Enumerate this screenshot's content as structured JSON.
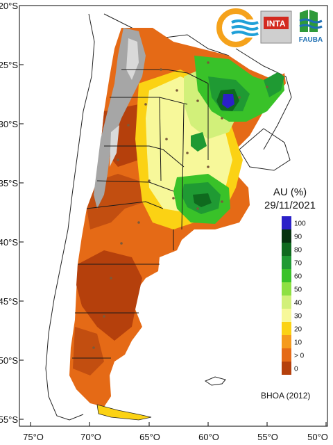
{
  "map": {
    "title": "AU (%)",
    "date": "29/11/2021",
    "source": "BHOA (2012)",
    "lat_labels": [
      "20°S",
      "25°S",
      "30°S",
      "35°S",
      "40°S",
      "45°S",
      "50°S",
      "55°S"
    ],
    "lon_labels": [
      "75°O",
      "70°O",
      "65°O",
      "60°O",
      "55°O",
      "50°O"
    ]
  },
  "legend": {
    "items": [
      {
        "label": "100",
        "color": "#2b21c8"
      },
      {
        "label": "90",
        "color": "#06320e"
      },
      {
        "label": "80",
        "color": "#0f6a1e"
      },
      {
        "label": "70",
        "color": "#1f9a33"
      },
      {
        "label": "60",
        "color": "#39c229"
      },
      {
        "label": "50",
        "color": "#8ee043"
      },
      {
        "label": "40",
        "color": "#d2f07a"
      },
      {
        "label": "30",
        "color": "#f7f89a"
      },
      {
        "label": "20",
        "color": "#fbd214"
      },
      {
        "label": "10",
        "color": "#f59a1c"
      },
      {
        "label": "> 0",
        "color": "#e56a16"
      },
      {
        "label": "0",
        "color": "#b5400c"
      }
    ]
  },
  "logos": {
    "inta": "INTA",
    "fauba": "FAUBA"
  },
  "colors": {
    "ocean": "#ffffff",
    "mountain": "#a6a6a6",
    "border": "#1a1a1a"
  }
}
